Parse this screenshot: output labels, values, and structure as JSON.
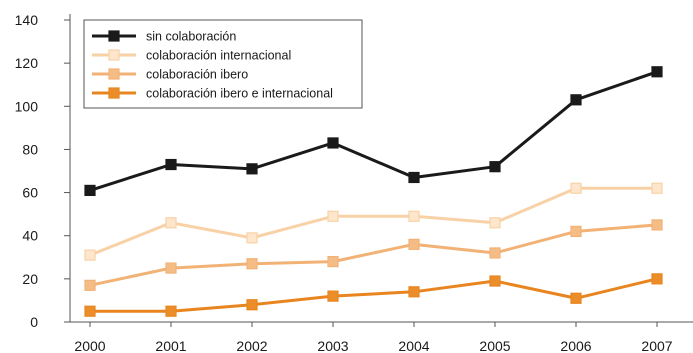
{
  "chart_data": {
    "type": "line",
    "title": "",
    "xlabel": "",
    "ylabel": "",
    "x": [
      "2000",
      "2001",
      "2002",
      "2003",
      "2004",
      "2005",
      "2006",
      "2007"
    ],
    "ylim": [
      0,
      140
    ],
    "yticks": [
      0,
      20,
      40,
      60,
      80,
      100,
      120,
      140
    ],
    "grid": false,
    "legend_position": "top-left",
    "series": [
      {
        "name": "sin colaboración",
        "color": "#1a1a1a",
        "marker_fill": "#1a1a1a",
        "values": [
          61,
          73,
          71,
          83,
          67,
          72,
          103,
          116
        ]
      },
      {
        "name": "colaboración internacional",
        "color": "#f8d2a6",
        "marker_fill": "#fde6cc",
        "values": [
          31,
          46,
          39,
          49,
          49,
          46,
          62,
          62
        ]
      },
      {
        "name": "colaboración ibero",
        "color": "#f2b276",
        "marker_fill": "#f5bd86",
        "values": [
          17,
          25,
          27,
          28,
          36,
          32,
          42,
          45
        ]
      },
      {
        "name": "colaboración ibero e internacional",
        "color": "#e9851f",
        "marker_fill": "#eb8e2a",
        "values": [
          5,
          5,
          8,
          12,
          14,
          19,
          11,
          20
        ]
      }
    ]
  }
}
